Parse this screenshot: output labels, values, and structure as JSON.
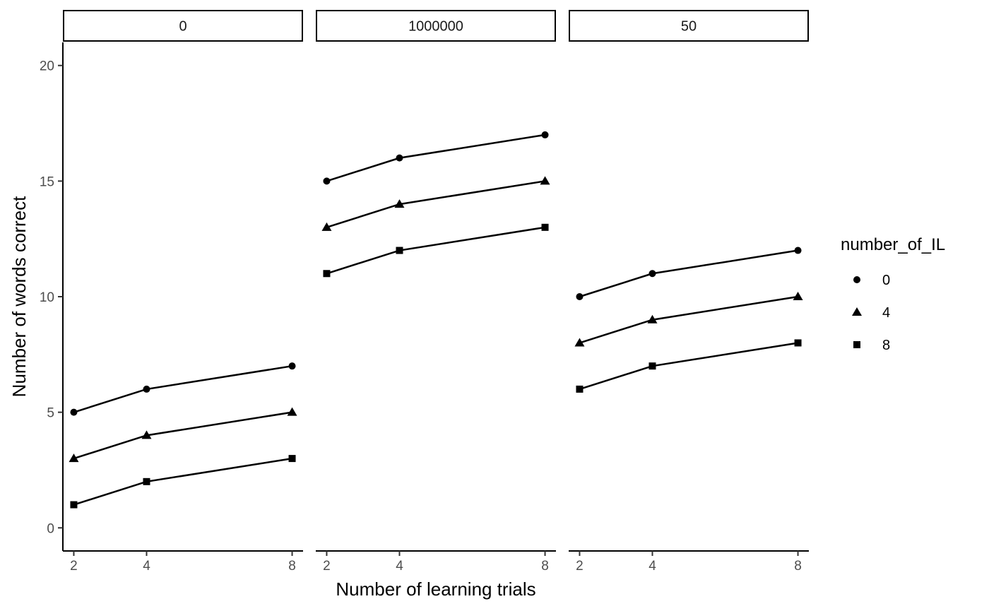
{
  "chart_data": {
    "type": "line",
    "xlabel": "Number of learning trials",
    "ylabel": "Number of words correct",
    "x_ticks": [
      2,
      4,
      8
    ],
    "y_ticks": [
      0,
      5,
      10,
      15,
      20
    ],
    "xlim": [
      1.7,
      8.3
    ],
    "ylim": [
      -1,
      21
    ],
    "grid": false,
    "legend": {
      "title": "number_of_IL",
      "position": "right",
      "entries": [
        {
          "label": "0",
          "shape": "circle"
        },
        {
          "label": "4",
          "shape": "triangle"
        },
        {
          "label": "8",
          "shape": "square"
        }
      ]
    },
    "facets": [
      {
        "label": "0",
        "x": [
          2,
          4,
          8
        ],
        "series": [
          {
            "name": "0",
            "shape": "circle",
            "values": [
              5,
              6,
              7
            ]
          },
          {
            "name": "4",
            "shape": "triangle",
            "values": [
              3,
              4,
              5
            ]
          },
          {
            "name": "8",
            "shape": "square",
            "values": [
              1,
              2,
              3
            ]
          }
        ]
      },
      {
        "label": "1000000",
        "x": [
          2,
          4,
          8
        ],
        "series": [
          {
            "name": "0",
            "shape": "circle",
            "values": [
              15,
              16,
              17
            ]
          },
          {
            "name": "4",
            "shape": "triangle",
            "values": [
              13,
              14,
              15
            ]
          },
          {
            "name": "8",
            "shape": "square",
            "values": [
              11,
              12,
              13
            ]
          }
        ]
      },
      {
        "label": "50",
        "x": [
          2,
          4,
          8
        ],
        "series": [
          {
            "name": "0",
            "shape": "circle",
            "values": [
              10,
              11,
              12
            ]
          },
          {
            "name": "4",
            "shape": "triangle",
            "values": [
              8,
              9,
              10
            ]
          },
          {
            "name": "8",
            "shape": "square",
            "values": [
              6,
              7,
              8
            ]
          }
        ]
      }
    ]
  }
}
